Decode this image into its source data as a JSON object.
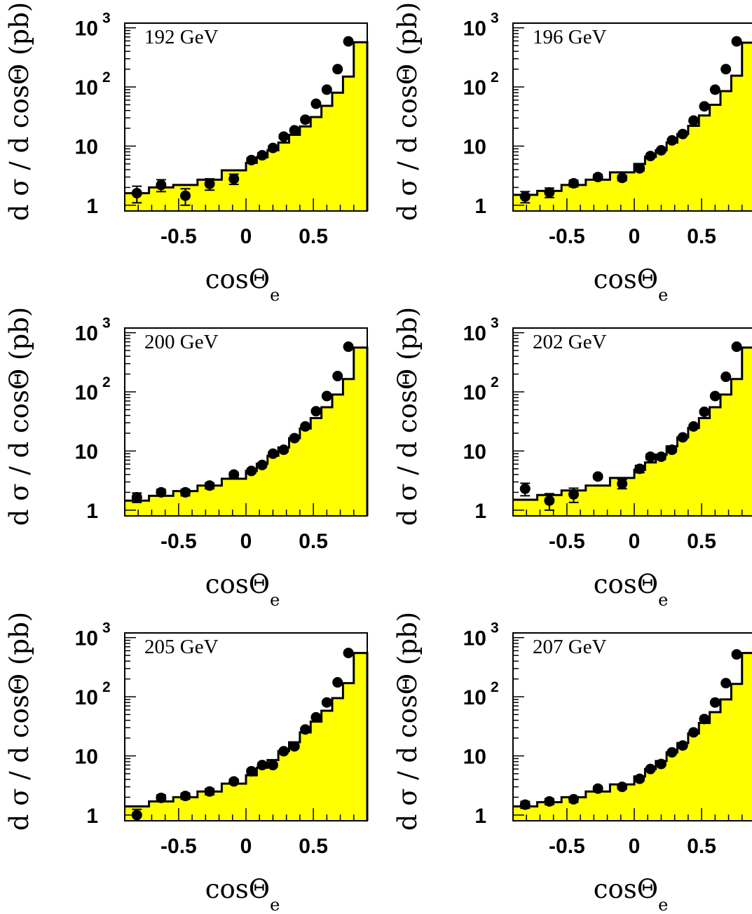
{
  "figure": {
    "ylabel": "d σ / d cosΘ (pb)",
    "xlabel_main": "cosΘ",
    "xlabel_sub": "e",
    "y_ticks": [
      {
        "value": 1,
        "base": "1",
        "exp": ""
      },
      {
        "value": 10,
        "base": "10",
        "exp": ""
      },
      {
        "value": 100,
        "base": "10",
        "exp": "2"
      },
      {
        "value": 1000,
        "base": "10",
        "exp": "3"
      }
    ],
    "x_ticks": [
      {
        "value": -0.5,
        "label": "-0.5"
      },
      {
        "value": 0,
        "label": "0"
      },
      {
        "value": 0.5,
        "label": "0.5"
      }
    ]
  },
  "colors": {
    "fill": "#ffff00",
    "line": "#000000",
    "marker": "#000000",
    "background": "#ffffff"
  },
  "chart_data": [
    {
      "type": "bar",
      "label": "192 GeV",
      "xlim": [
        -0.9,
        0.9
      ],
      "ylim": [
        0.8,
        1200
      ],
      "yscale": "log",
      "bin_edges": [
        -0.9,
        -0.72,
        -0.54,
        -0.36,
        -0.18,
        0,
        0.08,
        0.16,
        0.24,
        0.32,
        0.4,
        0.48,
        0.56,
        0.64,
        0.72,
        0.8,
        0.9
      ],
      "histogram": [
        1.6,
        2.0,
        2.2,
        2.7,
        3.9,
        5.2,
        6.5,
        8.5,
        11.5,
        15.5,
        21.5,
        31,
        48,
        80,
        150,
        570
      ],
      "points": [
        {
          "x": -0.81,
          "y": 1.6,
          "err": 0.5
        },
        {
          "x": -0.63,
          "y": 2.2,
          "err": 0.5
        },
        {
          "x": -0.45,
          "y": 1.45,
          "err": 0.45
        },
        {
          "x": -0.27,
          "y": 2.3,
          "err": 0.5
        },
        {
          "x": -0.09,
          "y": 2.8,
          "err": 0.55
        },
        {
          "x": 0.04,
          "y": 5.8,
          "err": 0.6
        },
        {
          "x": 0.12,
          "y": 7.0,
          "err": 0.7
        },
        {
          "x": 0.2,
          "y": 9.3,
          "err": 0.8
        },
        {
          "x": 0.28,
          "y": 14.5,
          "err": 1.0
        },
        {
          "x": 0.36,
          "y": 18.5,
          "err": 1.2
        },
        {
          "x": 0.44,
          "y": 28,
          "err": 1.5
        },
        {
          "x": 0.52,
          "y": 52,
          "err": 2.5
        },
        {
          "x": 0.6,
          "y": 90,
          "err": 3.5
        },
        {
          "x": 0.68,
          "y": 200,
          "err": 6
        },
        {
          "x": 0.76,
          "y": 590,
          "err": 12
        }
      ]
    },
    {
      "type": "bar",
      "label": "196 GeV",
      "xlim": [
        -0.9,
        0.9
      ],
      "ylim": [
        0.8,
        1200
      ],
      "yscale": "log",
      "bin_edges": [
        -0.9,
        -0.72,
        -0.54,
        -0.36,
        -0.18,
        0,
        0.08,
        0.16,
        0.24,
        0.32,
        0.4,
        0.48,
        0.56,
        0.64,
        0.72,
        0.8,
        0.9
      ],
      "histogram": [
        1.5,
        1.75,
        2.2,
        2.7,
        3.6,
        5.0,
        6.6,
        8.5,
        11.5,
        16,
        22,
        33,
        50,
        85,
        155,
        560
      ],
      "points": [
        {
          "x": -0.81,
          "y": 1.4,
          "err": 0.3
        },
        {
          "x": -0.63,
          "y": 1.65,
          "err": 0.3
        },
        {
          "x": -0.45,
          "y": 2.35,
          "err": 0.3
        },
        {
          "x": -0.27,
          "y": 3.0,
          "err": 0.3
        },
        {
          "x": -0.09,
          "y": 2.9,
          "err": 0.3
        },
        {
          "x": 0.04,
          "y": 4.2,
          "err": 0.4
        },
        {
          "x": 0.12,
          "y": 6.8,
          "err": 0.5
        },
        {
          "x": 0.2,
          "y": 8.5,
          "err": 0.6
        },
        {
          "x": 0.28,
          "y": 12.5,
          "err": 0.8
        },
        {
          "x": 0.36,
          "y": 16,
          "err": 1.0
        },
        {
          "x": 0.44,
          "y": 27,
          "err": 1.2
        },
        {
          "x": 0.52,
          "y": 47,
          "err": 2.0
        },
        {
          "x": 0.6,
          "y": 90,
          "err": 3.0
        },
        {
          "x": 0.68,
          "y": 200,
          "err": 5
        },
        {
          "x": 0.76,
          "y": 590,
          "err": 10
        }
      ]
    },
    {
      "type": "bar",
      "label": "200 GeV",
      "xlim": [
        -0.9,
        0.9
      ],
      "ylim": [
        0.8,
        1200
      ],
      "yscale": "log",
      "bin_edges": [
        -0.9,
        -0.72,
        -0.54,
        -0.36,
        -0.18,
        0,
        0.08,
        0.16,
        0.24,
        0.32,
        0.4,
        0.48,
        0.56,
        0.64,
        0.72,
        0.8,
        0.9
      ],
      "histogram": [
        1.45,
        1.75,
        2.1,
        2.6,
        3.4,
        4.6,
        6.1,
        8.3,
        11.5,
        16.5,
        24,
        36,
        55,
        90,
        165,
        560
      ],
      "points": [
        {
          "x": -0.81,
          "y": 1.65,
          "err": 0.3
        },
        {
          "x": -0.63,
          "y": 2.0,
          "err": 0.25
        },
        {
          "x": -0.45,
          "y": 2.0,
          "err": 0.25
        },
        {
          "x": -0.27,
          "y": 2.6,
          "err": 0.3
        },
        {
          "x": -0.09,
          "y": 4.0,
          "err": 0.35
        },
        {
          "x": 0.04,
          "y": 4.6,
          "err": 0.4
        },
        {
          "x": 0.12,
          "y": 5.8,
          "err": 0.45
        },
        {
          "x": 0.2,
          "y": 9.0,
          "err": 0.6
        },
        {
          "x": 0.28,
          "y": 10.5,
          "err": 0.7
        },
        {
          "x": 0.36,
          "y": 16.5,
          "err": 0.9
        },
        {
          "x": 0.44,
          "y": 26,
          "err": 1.2
        },
        {
          "x": 0.52,
          "y": 47,
          "err": 2.0
        },
        {
          "x": 0.6,
          "y": 85,
          "err": 3.0
        },
        {
          "x": 0.68,
          "y": 185,
          "err": 5
        },
        {
          "x": 0.76,
          "y": 580,
          "err": 10
        }
      ]
    },
    {
      "type": "bar",
      "label": "202 GeV",
      "xlim": [
        -0.9,
        0.9
      ],
      "ylim": [
        0.8,
        1200
      ],
      "yscale": "log",
      "bin_edges": [
        -0.9,
        -0.72,
        -0.54,
        -0.36,
        -0.18,
        0,
        0.08,
        0.16,
        0.24,
        0.32,
        0.4,
        0.48,
        0.56,
        0.64,
        0.72,
        0.8,
        0.9
      ],
      "histogram": [
        1.5,
        1.8,
        2.15,
        2.6,
        3.5,
        4.8,
        6.4,
        8.7,
        12,
        17,
        24.5,
        36,
        55,
        90,
        165,
        560
      ],
      "points": [
        {
          "x": -0.81,
          "y": 2.3,
          "err": 0.55
        },
        {
          "x": -0.63,
          "y": 1.45,
          "err": 0.45
        },
        {
          "x": -0.45,
          "y": 1.85,
          "err": 0.5
        },
        {
          "x": -0.27,
          "y": 3.7,
          "err": 0.3
        },
        {
          "x": -0.09,
          "y": 2.8,
          "err": 0.5
        },
        {
          "x": 0.04,
          "y": 5.0,
          "err": 0.7
        },
        {
          "x": 0.12,
          "y": 8.0,
          "err": 0.8
        },
        {
          "x": 0.2,
          "y": 8.0,
          "err": 0.8
        },
        {
          "x": 0.28,
          "y": 10.5,
          "err": 0.9
        },
        {
          "x": 0.36,
          "y": 17,
          "err": 1.2
        },
        {
          "x": 0.44,
          "y": 26,
          "err": 1.5
        },
        {
          "x": 0.52,
          "y": 46,
          "err": 2.2
        },
        {
          "x": 0.6,
          "y": 85,
          "err": 3.5
        },
        {
          "x": 0.68,
          "y": 180,
          "err": 6
        },
        {
          "x": 0.76,
          "y": 580,
          "err": 12
        }
      ]
    },
    {
      "type": "bar",
      "label": "205 GeV",
      "xlim": [
        -0.9,
        0.9
      ],
      "ylim": [
        0.8,
        1200
      ],
      "yscale": "log",
      "bin_edges": [
        -0.9,
        -0.72,
        -0.54,
        -0.36,
        -0.18,
        0,
        0.08,
        0.16,
        0.24,
        0.32,
        0.4,
        0.48,
        0.56,
        0.64,
        0.72,
        0.8,
        0.9
      ],
      "histogram": [
        1.4,
        1.7,
        2.0,
        2.5,
        3.4,
        4.7,
        6.3,
        8.5,
        12,
        17,
        25,
        38,
        58,
        95,
        170,
        550
      ],
      "points": [
        {
          "x": -0.81,
          "y": 1.0,
          "err": 0.25
        },
        {
          "x": -0.63,
          "y": 1.95,
          "err": 0.25
        },
        {
          "x": -0.45,
          "y": 2.1,
          "err": 0.25
        },
        {
          "x": -0.27,
          "y": 2.5,
          "err": 0.3
        },
        {
          "x": -0.09,
          "y": 3.7,
          "err": 0.35
        },
        {
          "x": 0.04,
          "y": 5.5,
          "err": 0.45
        },
        {
          "x": 0.12,
          "y": 7.0,
          "err": 0.55
        },
        {
          "x": 0.2,
          "y": 7.0,
          "err": 0.55
        },
        {
          "x": 0.28,
          "y": 12.0,
          "err": 0.75
        },
        {
          "x": 0.36,
          "y": 14.5,
          "err": 0.85
        },
        {
          "x": 0.44,
          "y": 28,
          "err": 1.2
        },
        {
          "x": 0.52,
          "y": 45,
          "err": 1.8
        },
        {
          "x": 0.6,
          "y": 80,
          "err": 2.8
        },
        {
          "x": 0.68,
          "y": 175,
          "err": 5
        },
        {
          "x": 0.76,
          "y": 550,
          "err": 10
        }
      ]
    },
    {
      "type": "bar",
      "label": "207 GeV",
      "xlim": [
        -0.9,
        0.9
      ],
      "ylim": [
        0.8,
        1200
      ],
      "yscale": "log",
      "bin_edges": [
        -0.9,
        -0.72,
        -0.54,
        -0.36,
        -0.18,
        0,
        0.08,
        0.16,
        0.24,
        0.32,
        0.4,
        0.48,
        0.56,
        0.64,
        0.72,
        0.8,
        0.9
      ],
      "histogram": [
        1.4,
        1.65,
        2.0,
        2.5,
        3.3,
        4.5,
        6.0,
        8.2,
        11.5,
        16.5,
        24,
        36,
        55,
        90,
        165,
        550
      ],
      "points": [
        {
          "x": -0.81,
          "y": 1.5,
          "err": 0.2
        },
        {
          "x": -0.63,
          "y": 1.7,
          "err": 0.2
        },
        {
          "x": -0.45,
          "y": 1.85,
          "err": 0.2
        },
        {
          "x": -0.27,
          "y": 2.8,
          "err": 0.25
        },
        {
          "x": -0.09,
          "y": 3.0,
          "err": 0.25
        },
        {
          "x": 0.04,
          "y": 4.1,
          "err": 0.3
        },
        {
          "x": 0.12,
          "y": 6.0,
          "err": 0.4
        },
        {
          "x": 0.2,
          "y": 7.3,
          "err": 0.45
        },
        {
          "x": 0.28,
          "y": 11.5,
          "err": 0.6
        },
        {
          "x": 0.36,
          "y": 15,
          "err": 0.75
        },
        {
          "x": 0.44,
          "y": 25,
          "err": 1.0
        },
        {
          "x": 0.52,
          "y": 42,
          "err": 1.5
        },
        {
          "x": 0.6,
          "y": 80,
          "err": 2.5
        },
        {
          "x": 0.68,
          "y": 170,
          "err": 4
        },
        {
          "x": 0.76,
          "y": 520,
          "err": 8
        }
      ]
    }
  ]
}
